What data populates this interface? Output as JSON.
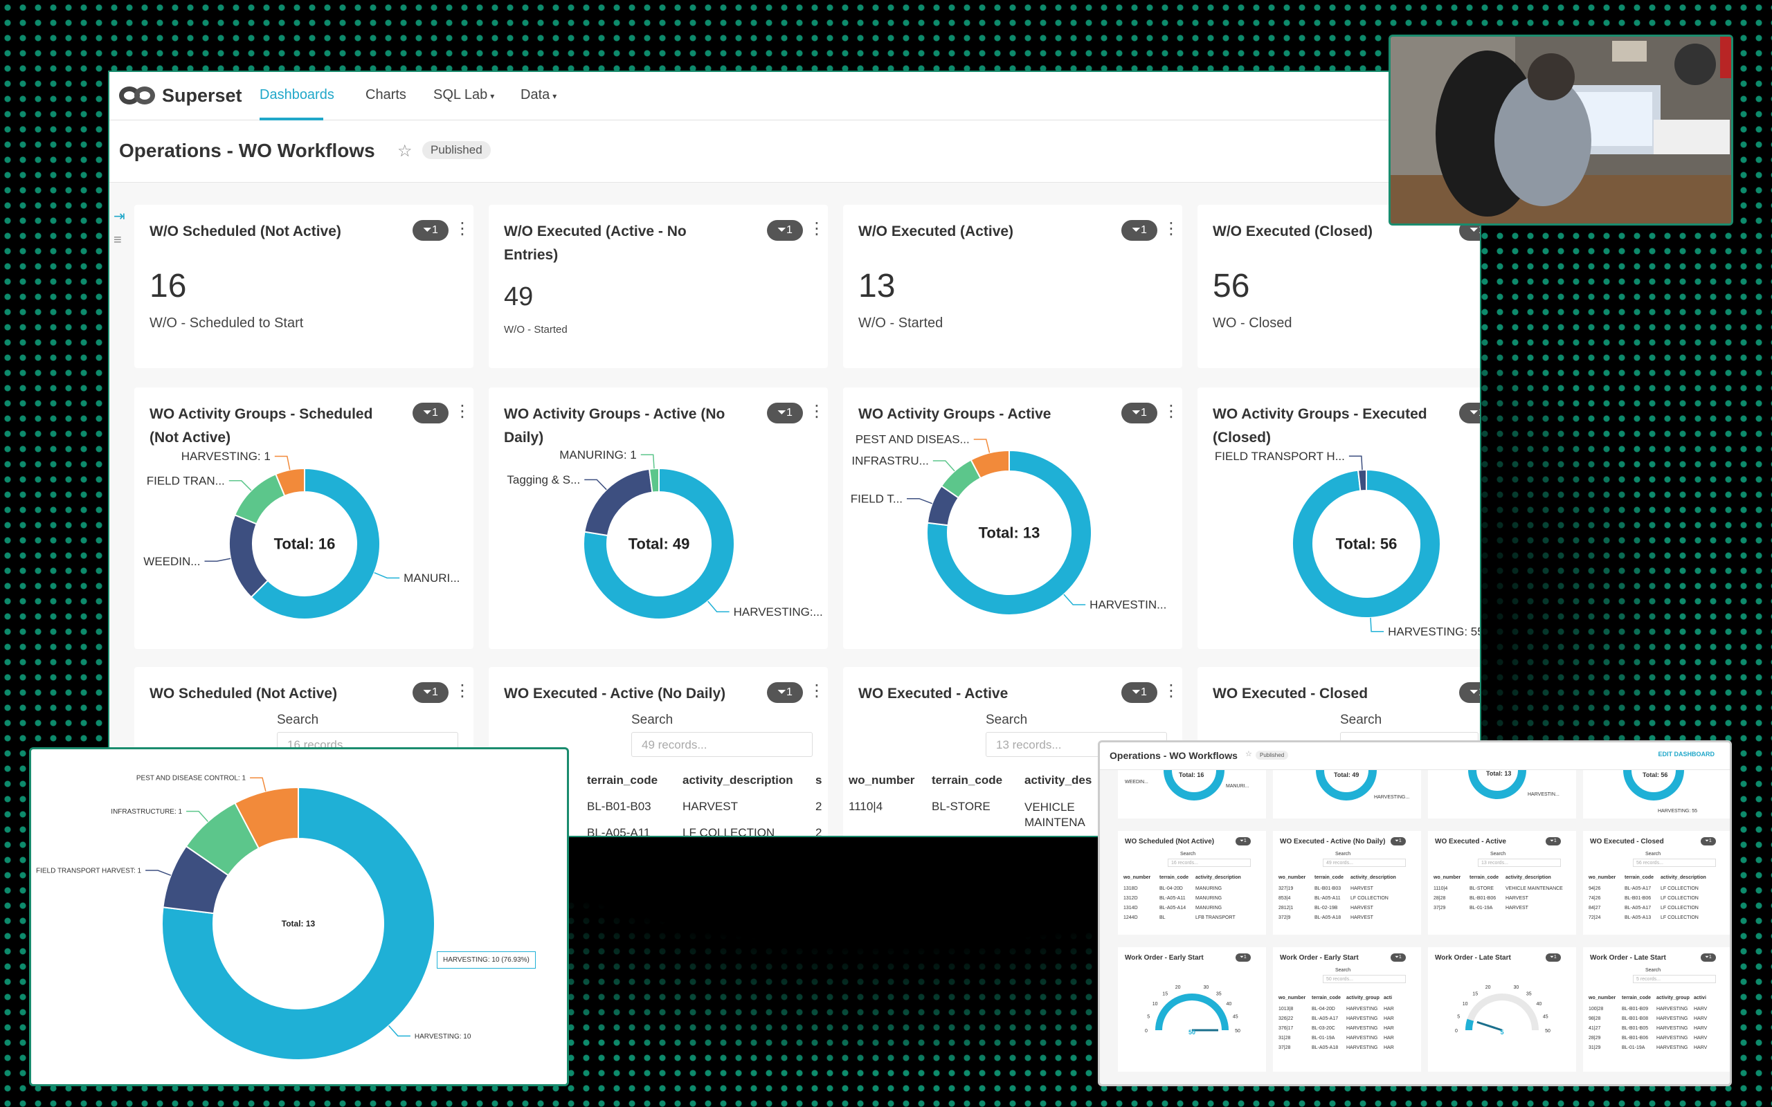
{
  "app": {
    "name": "Superset"
  },
  "nav": {
    "items": [
      {
        "label": "Dashboards",
        "active": true,
        "dropdown": false
      },
      {
        "label": "Charts",
        "active": false,
        "dropdown": false
      },
      {
        "label": "SQL Lab",
        "active": false,
        "dropdown": true
      },
      {
        "label": "Data",
        "active": false,
        "dropdown": true
      }
    ]
  },
  "dashboard": {
    "title": "Operations - WO Workflows",
    "status": "Published",
    "filter_badge": "1"
  },
  "big_numbers": [
    {
      "title": "W/O Scheduled (Not Active)",
      "value": "16",
      "label": "W/O - Scheduled to Start"
    },
    {
      "title": "W/O Executed (Active - No Entries)",
      "value": "49",
      "label": "W/O - Started"
    },
    {
      "title": "W/O Executed (Active)",
      "value": "13",
      "label": "W/O - Started"
    },
    {
      "title": "W/O Executed (Closed)",
      "value": "56",
      "label": "WO - Closed"
    }
  ],
  "chart_data": [
    {
      "type": "pie",
      "title": "WO Activity Groups - Scheduled (Not Active)",
      "center_label": "Total: 16",
      "categories": [
        "MANURI...",
        "WEEDIN...",
        "FIELD TRAN...",
        "HARVESTING: 1"
      ],
      "values": [
        10,
        3,
        2,
        1
      ],
      "colors": [
        "#1fb0d6",
        "#3d4f80",
        "#5cc68b",
        "#f28a3a"
      ]
    },
    {
      "type": "pie",
      "title": "WO Activity Groups - Active (No Daily)",
      "center_label": "Total: 49",
      "categories": [
        "HARVESTING:...",
        "Tagging & S...",
        "MANURING: 1"
      ],
      "values": [
        38,
        10,
        1
      ],
      "colors": [
        "#1fb0d6",
        "#3d4f80",
        "#5cc68b"
      ]
    },
    {
      "type": "pie",
      "title": "WO Activity Groups - Active",
      "center_label": "Total: 13",
      "categories": [
        "HARVESTIN...",
        "FIELD T...",
        "INFRASTRU...",
        "PEST AND DISEAS..."
      ],
      "values": [
        10,
        1,
        1,
        1
      ],
      "colors": [
        "#1fb0d6",
        "#3d4f80",
        "#5cc68b",
        "#f28a3a"
      ]
    },
    {
      "type": "pie",
      "title": "WO Activity Groups - Executed (Closed)",
      "center_label": "Total: 56",
      "categories": [
        "HARVESTING: 55",
        "FIELD TRANSPORT H..."
      ],
      "values": [
        55,
        1
      ],
      "colors": [
        "#1fb0d6",
        "#3d4f80"
      ]
    },
    {
      "type": "pie",
      "title": "",
      "center_label": "Total: 13",
      "categories": [
        "HARVESTING: 10",
        "FIELD TRANSPORT HARVEST: 1",
        "INFRASTRUCTURE: 1",
        "PEST AND DISEASE CONTROL: 1"
      ],
      "values": [
        10,
        1,
        1,
        1
      ],
      "colors": [
        "#1fb0d6",
        "#3d4f80",
        "#5cc68b",
        "#f28a3a"
      ],
      "tooltip": "HARVESTING: 10 (76.93%)"
    }
  ],
  "tables": [
    {
      "title": "WO Scheduled (Not Active)",
      "search_label": "Search",
      "placeholder": "16 records..."
    },
    {
      "title": "WO Executed - Active (No Daily)",
      "search_label": "Search",
      "placeholder": "49 records...",
      "columns": [
        "r",
        "terrain_code",
        "activity_description",
        "s"
      ],
      "rows": [
        [
          "",
          "BL-B01-B03",
          "HARVEST",
          "2"
        ],
        [
          "",
          "BL-A05-A11",
          "LF COLLECTION",
          "2"
        ]
      ]
    },
    {
      "title": "WO Executed - Active",
      "search_label": "Search",
      "placeholder": "13 records...",
      "columns": [
        "wo_number",
        "terrain_code",
        "activity_des"
      ],
      "rows": [
        [
          "1110|4",
          "BL-STORE",
          "VEHICLE MAINTENA"
        ]
      ]
    },
    {
      "title": "WO Executed - Closed",
      "search_label": "Search",
      "placeholder": ""
    }
  ],
  "mini": {
    "title": "Operations - WO Workflows",
    "status": "Published",
    "edit_label": "EDIT DASHBOARD",
    "donuts": [
      {
        "label": "Total: 16",
        "tag": "MANURI..."
      },
      {
        "label": "Total: 49",
        "tag": "HARVESTING..."
      },
      {
        "label": "Total: 13",
        "tag": "HARVESTIN..."
      },
      {
        "label": "Total: 56",
        "tag": "HARVESTING: 55"
      }
    ],
    "first_donut_left_tag": "WEEDIN...",
    "tables": [
      {
        "title": "WO Scheduled (Not Active)",
        "search": "Search",
        "placeholder": "16 records...",
        "columns": [
          "wo_number",
          "terrain_code",
          "activity_description"
        ],
        "rows": [
          [
            "1318D",
            "BL-04-20D",
            "MANURING"
          ],
          [
            "1312D",
            "BL-A05-A11",
            "MANURING"
          ],
          [
            "1314D",
            "BL-A05-A14",
            "MANURING"
          ],
          [
            "1244D",
            "BL",
            "LFB TRANSPORT"
          ]
        ]
      },
      {
        "title": "WO Executed - Active (No Daily)",
        "search": "Search",
        "placeholder": "49 records...",
        "columns": [
          "wo_number",
          "terrain_code",
          "activity_description"
        ],
        "rows": [
          [
            "327|19",
            "BL-B01-B03",
            "HARVEST"
          ],
          [
            "853|4",
            "BL-A05-A11",
            "LF COLLECTION"
          ],
          [
            "2812|1",
            "BL-02-19B",
            "HARVEST"
          ],
          [
            "372|9",
            "BL-A05-A18",
            "HARVEST"
          ]
        ]
      },
      {
        "title": "WO Executed - Active",
        "search": "Search",
        "placeholder": "13 records...",
        "columns": [
          "wo_number",
          "terrain_code",
          "activity_description"
        ],
        "rows": [
          [
            "1110|4",
            "BL-STORE",
            "VEHICLE MAINTENANCE"
          ],
          [
            "28|28",
            "BL-B01-B06",
            "HARVEST"
          ],
          [
            "37|29",
            "BL-01-19A",
            "HARVEST"
          ]
        ]
      },
      {
        "title": "WO Executed - Closed",
        "search": "Search",
        "placeholder": "56 records...",
        "columns": [
          "wo_number",
          "terrain_code",
          "activity_description"
        ],
        "rows": [
          [
            "94|26",
            "BL-A05-A17",
            "LF COLLECTION"
          ],
          [
            "74|26",
            "BL-B01-B06",
            "LF COLLECTION"
          ],
          [
            "84|27",
            "BL-A05-A17",
            "LF COLLECTION"
          ],
          [
            "72|24",
            "BL-A05-A13",
            "LF COLLECTION"
          ]
        ]
      }
    ],
    "gauges": [
      {
        "title": "Work Order - Early Start",
        "value": "50",
        "ticks": [
          "0",
          "5",
          "10",
          "15",
          "20",
          "30",
          "35",
          "40",
          "45",
          "50"
        ]
      },
      {
        "title": "Work Order - Late Start",
        "value": "5",
        "ticks": [
          "0",
          "5",
          "10",
          "15",
          "20",
          "30",
          "35",
          "40",
          "45",
          "50"
        ]
      }
    ],
    "gauge_tables": [
      {
        "title": "Work Order - Early Start",
        "search": "Search",
        "placeholder": "50 records...",
        "columns": [
          "wo_number",
          "terrain_code",
          "activity_group",
          "acti"
        ],
        "rows": [
          [
            "1013|8",
            "BL-04-20D",
            "HARVESTING",
            "HAR"
          ],
          [
            "326|22",
            "BL-A05-A17",
            "HARVESTING",
            "HAR"
          ],
          [
            "376|17",
            "BL-03-20C",
            "HARVESTING",
            "HAR"
          ],
          [
            "31|28",
            "BL-01-19A",
            "HARVESTING",
            "HAR"
          ],
          [
            "37|28",
            "BL-A05-A18",
            "HARVESTING",
            "HAR"
          ]
        ]
      },
      {
        "title": "Work Order - Late Start",
        "search": "Search",
        "placeholder": "5 records...",
        "columns": [
          "wo_number",
          "terrain_code",
          "activity_group",
          "activi"
        ],
        "rows": [
          [
            "100|28",
            "BL-B01-B09",
            "HARVESTING",
            "HARV"
          ],
          [
            "98|28",
            "BL-B01-B08",
            "HARVESTING",
            "HARV"
          ],
          [
            "41|27",
            "BL-B01-B05",
            "HARVESTING",
            "HARV"
          ],
          [
            "28|29",
            "BL-B01-B06",
            "HARVESTING",
            "HARV"
          ],
          [
            "31|29",
            "BL-01-19A",
            "HARVESTING",
            "HARV"
          ]
        ]
      }
    ]
  }
}
